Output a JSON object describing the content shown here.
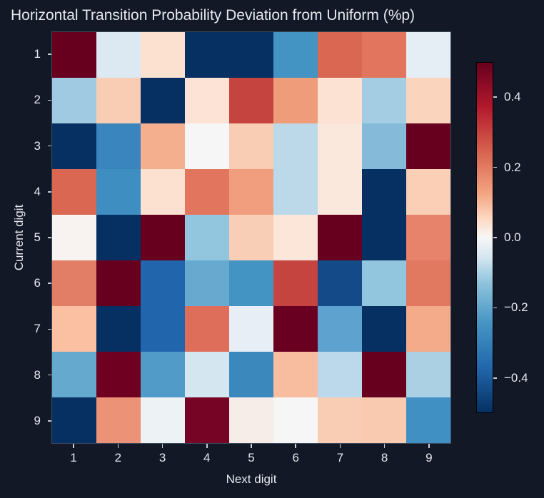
{
  "chart_data": {
    "type": "heatmap",
    "title": "Horizontal Transition Probability Deviation from Uniform (%p)",
    "xlabel": "Next digit",
    "ylabel": "Current digit",
    "x_categories": [
      "1",
      "2",
      "3",
      "4",
      "5",
      "6",
      "7",
      "8",
      "9"
    ],
    "y_categories": [
      "1",
      "2",
      "3",
      "4",
      "5",
      "6",
      "7",
      "8",
      "9"
    ],
    "colormap": "RdBu_r",
    "vmin": -0.5,
    "vmax": 0.5,
    "colorbar_ticks": [
      "0.4",
      "0.2",
      "0.0",
      "−0.2",
      "−0.4"
    ],
    "colorbar_tick_values": [
      0.4,
      0.2,
      0.0,
      -0.2,
      -0.4
    ],
    "values": [
      [
        0.55,
        -0.05,
        0.06,
        -0.55,
        -0.55,
        -0.28,
        0.3,
        0.27,
        -0.03
      ],
      [
        -0.16,
        0.12,
        -0.55,
        0.05,
        0.38,
        0.2,
        0.06,
        -0.15,
        0.1
      ],
      [
        -0.55,
        -0.31,
        0.17,
        0.0,
        0.12,
        -0.1,
        0.03,
        -0.19,
        0.55
      ],
      [
        0.3,
        -0.29,
        0.06,
        0.27,
        0.19,
        -0.1,
        0.03,
        -0.55,
        0.11
      ],
      [
        0.01,
        -0.55,
        0.55,
        -0.17,
        0.12,
        0.04,
        0.55,
        -0.55,
        0.24
      ],
      [
        0.26,
        0.55,
        -0.38,
        -0.23,
        -0.28,
        0.38,
        -0.44,
        -0.17,
        0.27
      ],
      [
        0.14,
        -0.55,
        -0.38,
        0.29,
        -0.03,
        0.55,
        -0.24,
        -0.55,
        0.17
      ],
      [
        -0.23,
        0.5,
        -0.26,
        -0.06,
        -0.31,
        0.15,
        -0.1,
        0.55,
        -0.12
      ],
      [
        -0.55,
        0.21,
        -0.02,
        0.48,
        0.02,
        0.0,
        0.1,
        0.11,
        -0.28
      ]
    ],
    "cell_colors": [
      [
        "#67001f",
        "#dce9f3",
        "#fce0d0",
        "#053061",
        "#053061",
        "#4393c3",
        "#d96752",
        "#e1755e",
        "#e6eef5"
      ],
      [
        "#9fcae1",
        "#f9ccb4",
        "#053061",
        "#fde3d6",
        "#c6443f",
        "#ef9c7b",
        "#fbe2d2",
        "#a4cde3",
        "#fad4bc"
      ],
      [
        "#053061",
        "#3a85bd",
        "#f4af8f",
        "#f6f6f6",
        "#f9ccb4",
        "#bcd9ea",
        "#fae8dc",
        "#85bbd9",
        "#67001f"
      ],
      [
        "#d96752",
        "#3f8ec1",
        "#fce0d0",
        "#e1755e",
        "#f19e7e",
        "#bcd9ea",
        "#fae8dc",
        "#053061",
        "#facfb6"
      ],
      [
        "#f8f3f0",
        "#053061",
        "#67001f",
        "#92c5de",
        "#f9ceb6",
        "#fbe6d9",
        "#67001f",
        "#053061",
        "#e7836a"
      ],
      [
        "#e37e66",
        "#67001f",
        "#2166ac",
        "#68a9d0",
        "#4393c3",
        "#c6443f",
        "#144a87",
        "#92c5de",
        "#e17860"
      ],
      [
        "#fbbfa2",
        "#053061",
        "#2166ac",
        "#de6d59",
        "#e7eef5",
        "#6a0021",
        "#5ea3cf",
        "#053061",
        "#f4ab89"
      ],
      [
        "#65a9cf",
        "#700021",
        "#519bc8",
        "#d4e6f0",
        "#3b88bd",
        "#f8bc9f",
        "#bbd9ea",
        "#67001f",
        "#abd0e4"
      ],
      [
        "#053061",
        "#ec9276",
        "#edf2f4",
        "#760525",
        "#f7ede8",
        "#f6f6f6",
        "#f9cdb4",
        "#f9caaf",
        "#4190c4"
      ]
    ]
  }
}
